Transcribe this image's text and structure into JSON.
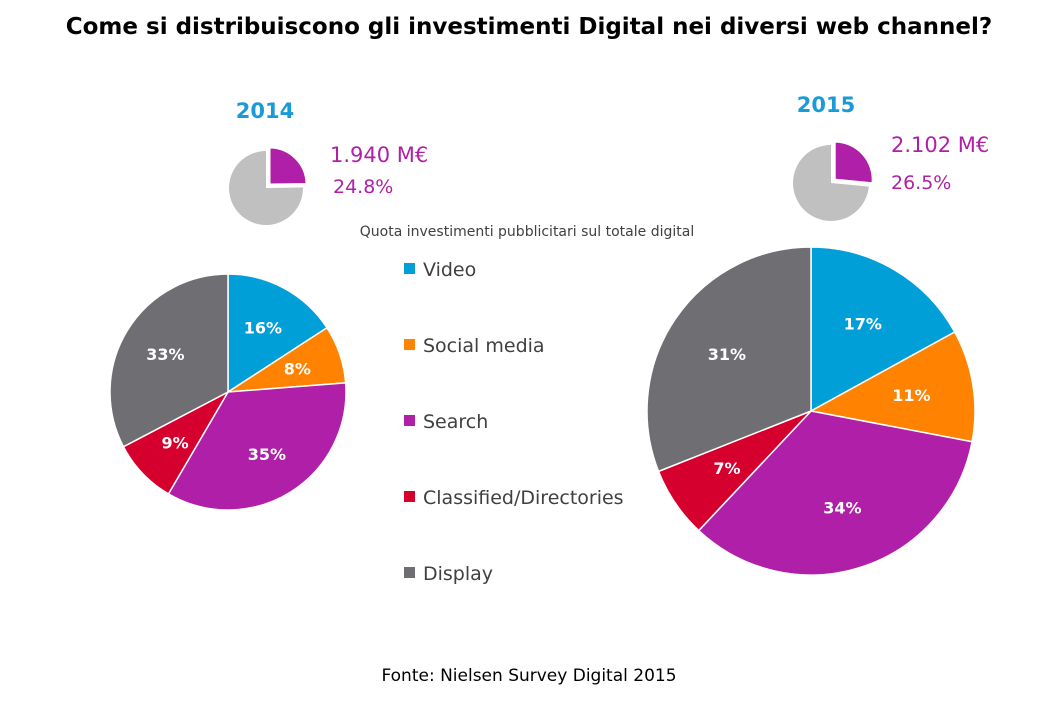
{
  "title": "Come si distribuiscono gli investimenti Digital nei diversi web channel?",
  "subtitle": "Quota investimenti pubblicitari sul totale digital",
  "source": "Fonte: Nielsen Survey Digital 2015",
  "colors": {
    "Video": "#009fd8",
    "Social media": "#ff8200",
    "Search": "#b01fa7",
    "Classified/Directories": "#d5002e",
    "Display": "#6f6f73",
    "share": "#b01fa7",
    "share_rest": "#c0c0c0",
    "year": "#1a9ad6"
  },
  "chart_data": [
    {
      "type": "pie",
      "title": "2014",
      "categories": [
        "Video",
        "Social media",
        "Search",
        "Classified/Directories",
        "Display"
      ],
      "values": [
        16,
        8,
        35,
        9,
        33
      ],
      "labels": [
        "16%",
        "8%",
        "35%",
        "9%",
        "33%"
      ]
    },
    {
      "type": "pie",
      "title": "2015",
      "categories": [
        "Video",
        "Social media",
        "Search",
        "Classified/Directories",
        "Display"
      ],
      "values": [
        17,
        11,
        34,
        7,
        31
      ],
      "labels": [
        "17%",
        "11%",
        "34%",
        "7%",
        "31%"
      ]
    },
    {
      "type": "pie",
      "title": "2014",
      "categories": [
        "Quota investimenti pubblicitari sul totale digital",
        ""
      ],
      "values": [
        24.8,
        75.2
      ],
      "annotations": [
        "1.940 M€",
        "24.8%"
      ]
    },
    {
      "type": "pie",
      "title": "2015",
      "categories": [
        "Quota investimenti pubblicitari sul totale digital",
        ""
      ],
      "values": [
        26.5,
        73.5
      ],
      "annotations": [
        "2.102 M€",
        "26.5%"
      ]
    }
  ],
  "legend": {
    "items": [
      "Video",
      "Social media",
      "Search",
      "Classified/Directories",
      "Display"
    ]
  }
}
